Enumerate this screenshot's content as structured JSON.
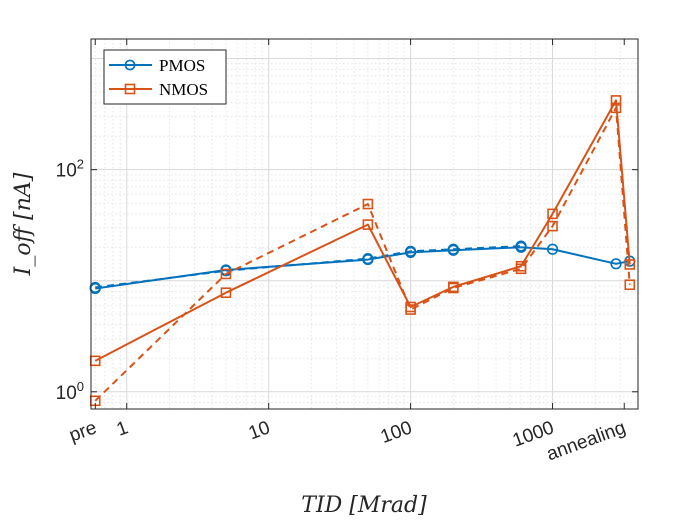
{
  "chart_data": {
    "type": "line",
    "title": "",
    "xlabel": "TID [Mrad]",
    "ylabel": "I_off [nA]",
    "xscale": "log",
    "yscale": "log",
    "xlim": [
      0.56,
      4000
    ],
    "ylim": [
      0.7,
      1500
    ],
    "grid": true,
    "legend_position": "top-left",
    "x_tick_labels": [
      {
        "x": 0.6,
        "label": "pre"
      },
      {
        "x": 1,
        "label": "1"
      },
      {
        "x": 10,
        "label": "10"
      },
      {
        "x": 100,
        "label": "100"
      },
      {
        "x": 1000,
        "label": "1000"
      },
      {
        "x": 3200,
        "label": "annealing"
      }
    ],
    "y_tick_labels": [
      {
        "y": 1,
        "base": "10",
        "exp": "0"
      },
      {
        "y": 100,
        "base": "10",
        "exp": "2"
      }
    ],
    "series": [
      {
        "name": "PMOS",
        "group": "PMOS",
        "style": "solid",
        "marker": "circle",
        "color": "#0072BD",
        "x": [
          0.6,
          5,
          50,
          100,
          200,
          600,
          1000,
          2800,
          3500
        ],
        "y": [
          8.5,
          12.5,
          15.5,
          18,
          18.8,
          20,
          19.2,
          14.2,
          15
        ]
      },
      {
        "name": "PMOS",
        "group": "PMOS",
        "style": "dashed",
        "marker": "circle",
        "color": "#0072BD",
        "x": [
          0.6,
          5,
          50,
          100,
          200,
          600
        ],
        "y": [
          8.7,
          12.3,
          15.8,
          18.4,
          19.2,
          20.5
        ]
      },
      {
        "name": "NMOS",
        "group": "NMOS",
        "style": "solid",
        "marker": "square",
        "color": "#D95319",
        "x": [
          0.6,
          5,
          50,
          100,
          200,
          600,
          1000,
          2800,
          3500
        ],
        "y": [
          1.9,
          7.8,
          32,
          5.8,
          8.8,
          13.5,
          40,
          420,
          14
        ]
      },
      {
        "name": "NMOS",
        "group": "NMOS",
        "style": "dashed",
        "marker": "square",
        "color": "#D95319",
        "x": [
          0.6,
          5,
          50,
          100,
          200,
          600,
          1000,
          2800,
          3500
        ],
        "y": [
          0.83,
          11.5,
          49,
          5.5,
          8.6,
          12.8,
          31,
          360,
          9.2
        ]
      }
    ]
  }
}
